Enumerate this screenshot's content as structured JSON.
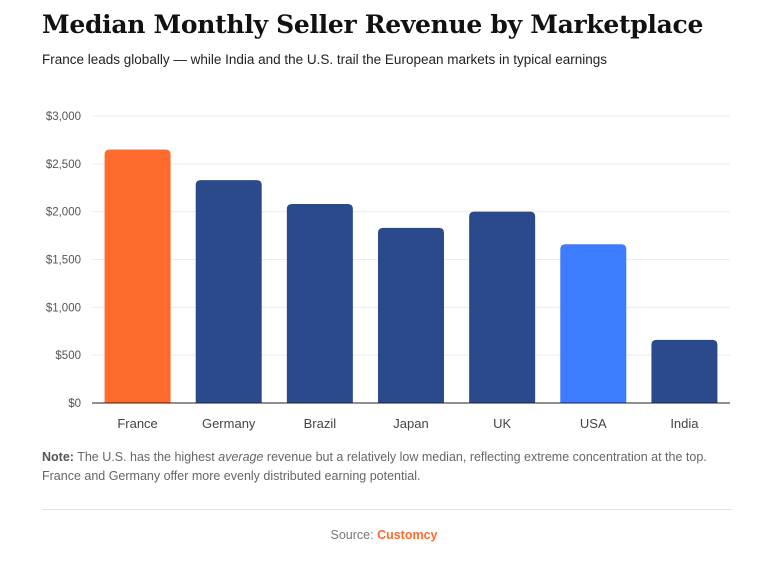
{
  "header": {
    "title": "Median Monthly Seller Revenue by Marketplace",
    "subtitle": "France leads globally — while India and the U.S. trail the European markets in typical earnings"
  },
  "chart_data": {
    "type": "bar",
    "categories": [
      "France",
      "Germany",
      "Brazil",
      "Japan",
      "UK",
      "USA",
      "India"
    ],
    "values": [
      2650,
      2330,
      2080,
      1830,
      2000,
      1660,
      660
    ],
    "colors": [
      "#ff6b2c",
      "#2b4a8b",
      "#2b4a8b",
      "#2b4a8b",
      "#2b4a8b",
      "#3d7bff",
      "#2b4a8b"
    ],
    "ylim": [
      0,
      3000
    ],
    "yticks": [
      0,
      500,
      1000,
      1500,
      2000,
      2500,
      3000
    ],
    "ytick_labels": [
      "$0",
      "$500",
      "$1,000",
      "$1,500",
      "$2,000",
      "$2,500",
      "$3,000"
    ],
    "grid": true
  },
  "note": {
    "label": "Note:",
    "text_before": " The U.S. has the highest ",
    "emphasis": "average",
    "text_after": " revenue but a relatively low median, reflecting extreme concentration at the top. France and Germany offer more evenly distributed earning potential."
  },
  "source": {
    "label": "Source: ",
    "name": "Customcy"
  }
}
